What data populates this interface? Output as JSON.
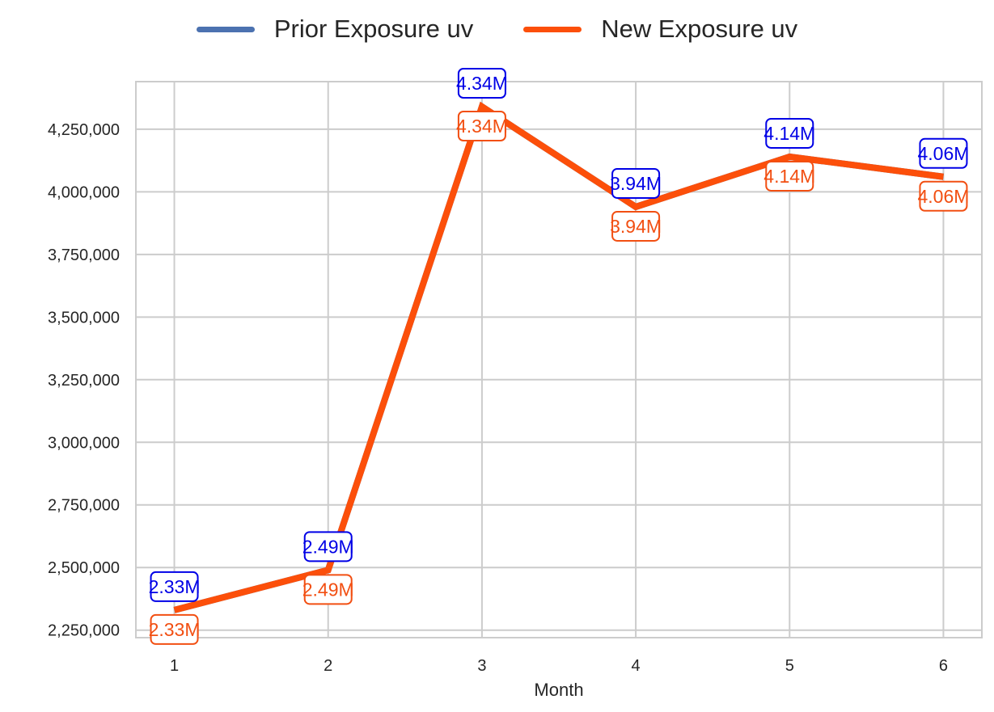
{
  "chart_data": {
    "type": "line",
    "xlabel": "Month",
    "ylabel": "",
    "x": [
      1,
      2,
      3,
      4,
      5,
      6
    ],
    "xlim": [
      0.75,
      6.25
    ],
    "ylim": [
      2220000,
      4440000
    ],
    "yticks": [
      2250000,
      2500000,
      2750000,
      3000000,
      3250000,
      3500000,
      3750000,
      4000000,
      4250000
    ],
    "ytick_labels": [
      "2,250,000",
      "2,500,000",
      "2,750,000",
      "3,000,000",
      "3,250,000",
      "3,500,000",
      "3,750,000",
      "4,000,000",
      "4,250,000"
    ],
    "xtick_labels": [
      "1",
      "2",
      "3",
      "4",
      "5",
      "6"
    ],
    "grid": true,
    "legend_placement": "top-center",
    "series": [
      {
        "name": "Prior Exposure uv",
        "color": "#4c72b0",
        "label_color": "#0000e6",
        "values": [
          2330000,
          2490000,
          4340000,
          3940000,
          4140000,
          4060000
        ],
        "labels": [
          "2.33M",
          "2.49M",
          "4.34M",
          "3.94M",
          "4.14M",
          "4.06M"
        ]
      },
      {
        "name": "New Exposure uv",
        "color": "#fc4f0a",
        "label_color": "#f24f12",
        "values": [
          2330000,
          2490000,
          4340000,
          3940000,
          4140000,
          4060000
        ],
        "labels": [
          "2.33M",
          "2.49M",
          "4.34M",
          "3.94M",
          "4.14M",
          "4.06M"
        ]
      }
    ]
  }
}
